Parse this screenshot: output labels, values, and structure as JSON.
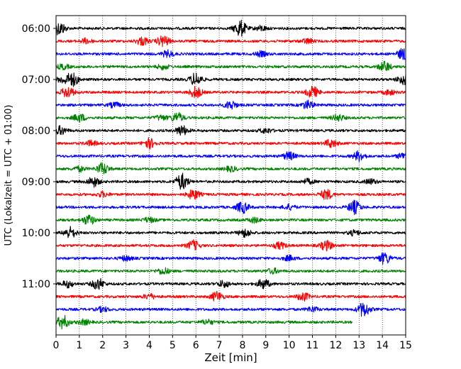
{
  "chart_data": {
    "type": "line",
    "xlabel": "Zeit  [min]",
    "ylabel": "UTC (Lokalzeit = UTC + 01:00)",
    "xlim": [
      0,
      15
    ],
    "x_ticks": [
      "0",
      "1",
      "2",
      "3",
      "4",
      "5",
      "6",
      "7",
      "8",
      "9",
      "10",
      "11",
      "12",
      "13",
      "14",
      "15"
    ],
    "y_ticks": [
      "06:00",
      "07:00",
      "08:00",
      "09:00",
      "10:00",
      "11:00"
    ],
    "grid_x": true,
    "trace_interval_min": 15,
    "trace_colors": [
      "#000000",
      "#ff0000",
      "#0000ff",
      "#008000"
    ],
    "traces": [
      {
        "start": "06:00",
        "end_min": 15,
        "events": [
          [
            0.15,
            0.8
          ],
          [
            7.9,
            1.0
          ],
          [
            8.8,
            0.3
          ]
        ]
      },
      {
        "start": "06:15",
        "end_min": 15,
        "events": [
          [
            3.7,
            0.5
          ],
          [
            4.6,
            0.7
          ],
          [
            1.3,
            0.3
          ],
          [
            10.8,
            0.3
          ]
        ]
      },
      {
        "start": "06:30",
        "end_min": 15,
        "events": [
          [
            4.8,
            0.4
          ],
          [
            8.8,
            0.3
          ],
          [
            14.9,
            0.7
          ]
        ]
      },
      {
        "start": "06:45",
        "end_min": 15,
        "events": [
          [
            4.6,
            0.3
          ],
          [
            14.1,
            0.6
          ],
          [
            0.3,
            0.3
          ]
        ]
      },
      {
        "start": "07:00",
        "end_min": 15,
        "events": [
          [
            0.7,
            0.8
          ],
          [
            6.0,
            0.8
          ],
          [
            14.9,
            0.6
          ],
          [
            0.3,
            0.4
          ]
        ]
      },
      {
        "start": "07:15",
        "end_min": 15,
        "events": [
          [
            0.5,
            0.7
          ],
          [
            6.0,
            0.7
          ],
          [
            11.0,
            0.7
          ],
          [
            14.3,
            0.3
          ]
        ]
      },
      {
        "start": "07:30",
        "end_min": 15,
        "events": [
          [
            7.5,
            0.5
          ],
          [
            10.8,
            0.5
          ],
          [
            2.5,
            0.3
          ]
        ]
      },
      {
        "start": "07:45",
        "end_min": 15,
        "events": [
          [
            1.0,
            0.5
          ],
          [
            5.2,
            0.6
          ],
          [
            12.1,
            0.4
          ],
          [
            4.5,
            0.3
          ]
        ]
      },
      {
        "start": "08:00",
        "end_min": 15,
        "events": [
          [
            0.2,
            0.5
          ],
          [
            5.4,
            0.6
          ],
          [
            9.0,
            0.3
          ]
        ]
      },
      {
        "start": "08:15",
        "end_min": 15,
        "events": [
          [
            4.0,
            0.6
          ],
          [
            11.8,
            0.5
          ],
          [
            1.5,
            0.3
          ]
        ]
      },
      {
        "start": "08:30",
        "end_min": 15,
        "events": [
          [
            10.0,
            0.5
          ],
          [
            13.0,
            0.6
          ],
          [
            14.9,
            0.4
          ]
        ]
      },
      {
        "start": "08:45",
        "end_min": 15,
        "events": [
          [
            2.0,
            0.7
          ],
          [
            1.0,
            0.3
          ],
          [
            7.5,
            0.3
          ]
        ]
      },
      {
        "start": "09:00",
        "end_min": 15,
        "events": [
          [
            1.6,
            0.6
          ],
          [
            5.4,
            1.0
          ],
          [
            10.8,
            0.3
          ],
          [
            13.5,
            0.3
          ]
        ]
      },
      {
        "start": "09:15",
        "end_min": 15,
        "events": [
          [
            5.9,
            0.6
          ],
          [
            11.6,
            0.6
          ],
          [
            2.0,
            0.3
          ]
        ]
      },
      {
        "start": "09:30",
        "end_min": 15,
        "events": [
          [
            8.0,
            0.7
          ],
          [
            12.8,
            0.8
          ],
          [
            10.0,
            0.3
          ]
        ]
      },
      {
        "start": "09:45",
        "end_min": 15,
        "events": [
          [
            1.4,
            0.6
          ],
          [
            4.0,
            0.3
          ],
          [
            8.5,
            0.3
          ]
        ]
      },
      {
        "start": "10:00",
        "end_min": 15,
        "events": [
          [
            0.6,
            0.7
          ],
          [
            8.1,
            0.5
          ],
          [
            12.8,
            0.3
          ]
        ]
      },
      {
        "start": "10:15",
        "end_min": 15,
        "events": [
          [
            5.9,
            0.6
          ],
          [
            11.6,
            0.6
          ],
          [
            9.6,
            0.4
          ]
        ]
      },
      {
        "start": "10:30",
        "end_min": 15,
        "events": [
          [
            14.1,
            0.7
          ],
          [
            10.0,
            0.3
          ],
          [
            3.0,
            0.3
          ]
        ]
      },
      {
        "start": "10:45",
        "end_min": 15,
        "events": [
          [
            4.6,
            0.4
          ],
          [
            9.3,
            0.3
          ]
        ]
      },
      {
        "start": "11:00",
        "end_min": 15,
        "events": [
          [
            1.8,
            0.7
          ],
          [
            8.9,
            0.6
          ],
          [
            0.5,
            0.4
          ],
          [
            7.2,
            0.4
          ]
        ]
      },
      {
        "start": "11:15",
        "end_min": 15,
        "events": [
          [
            6.9,
            0.6
          ],
          [
            10.6,
            0.5
          ],
          [
            4.0,
            0.3
          ]
        ]
      },
      {
        "start": "11:30",
        "end_min": 15,
        "events": [
          [
            13.2,
            0.9
          ],
          [
            2.0,
            0.3
          ],
          [
            11.0,
            0.3
          ]
        ]
      },
      {
        "start": "11:45",
        "end_min": 12.7,
        "events": [
          [
            0.3,
            0.8
          ],
          [
            1.2,
            0.3
          ],
          [
            6.5,
            0.3
          ]
        ]
      }
    ]
  }
}
